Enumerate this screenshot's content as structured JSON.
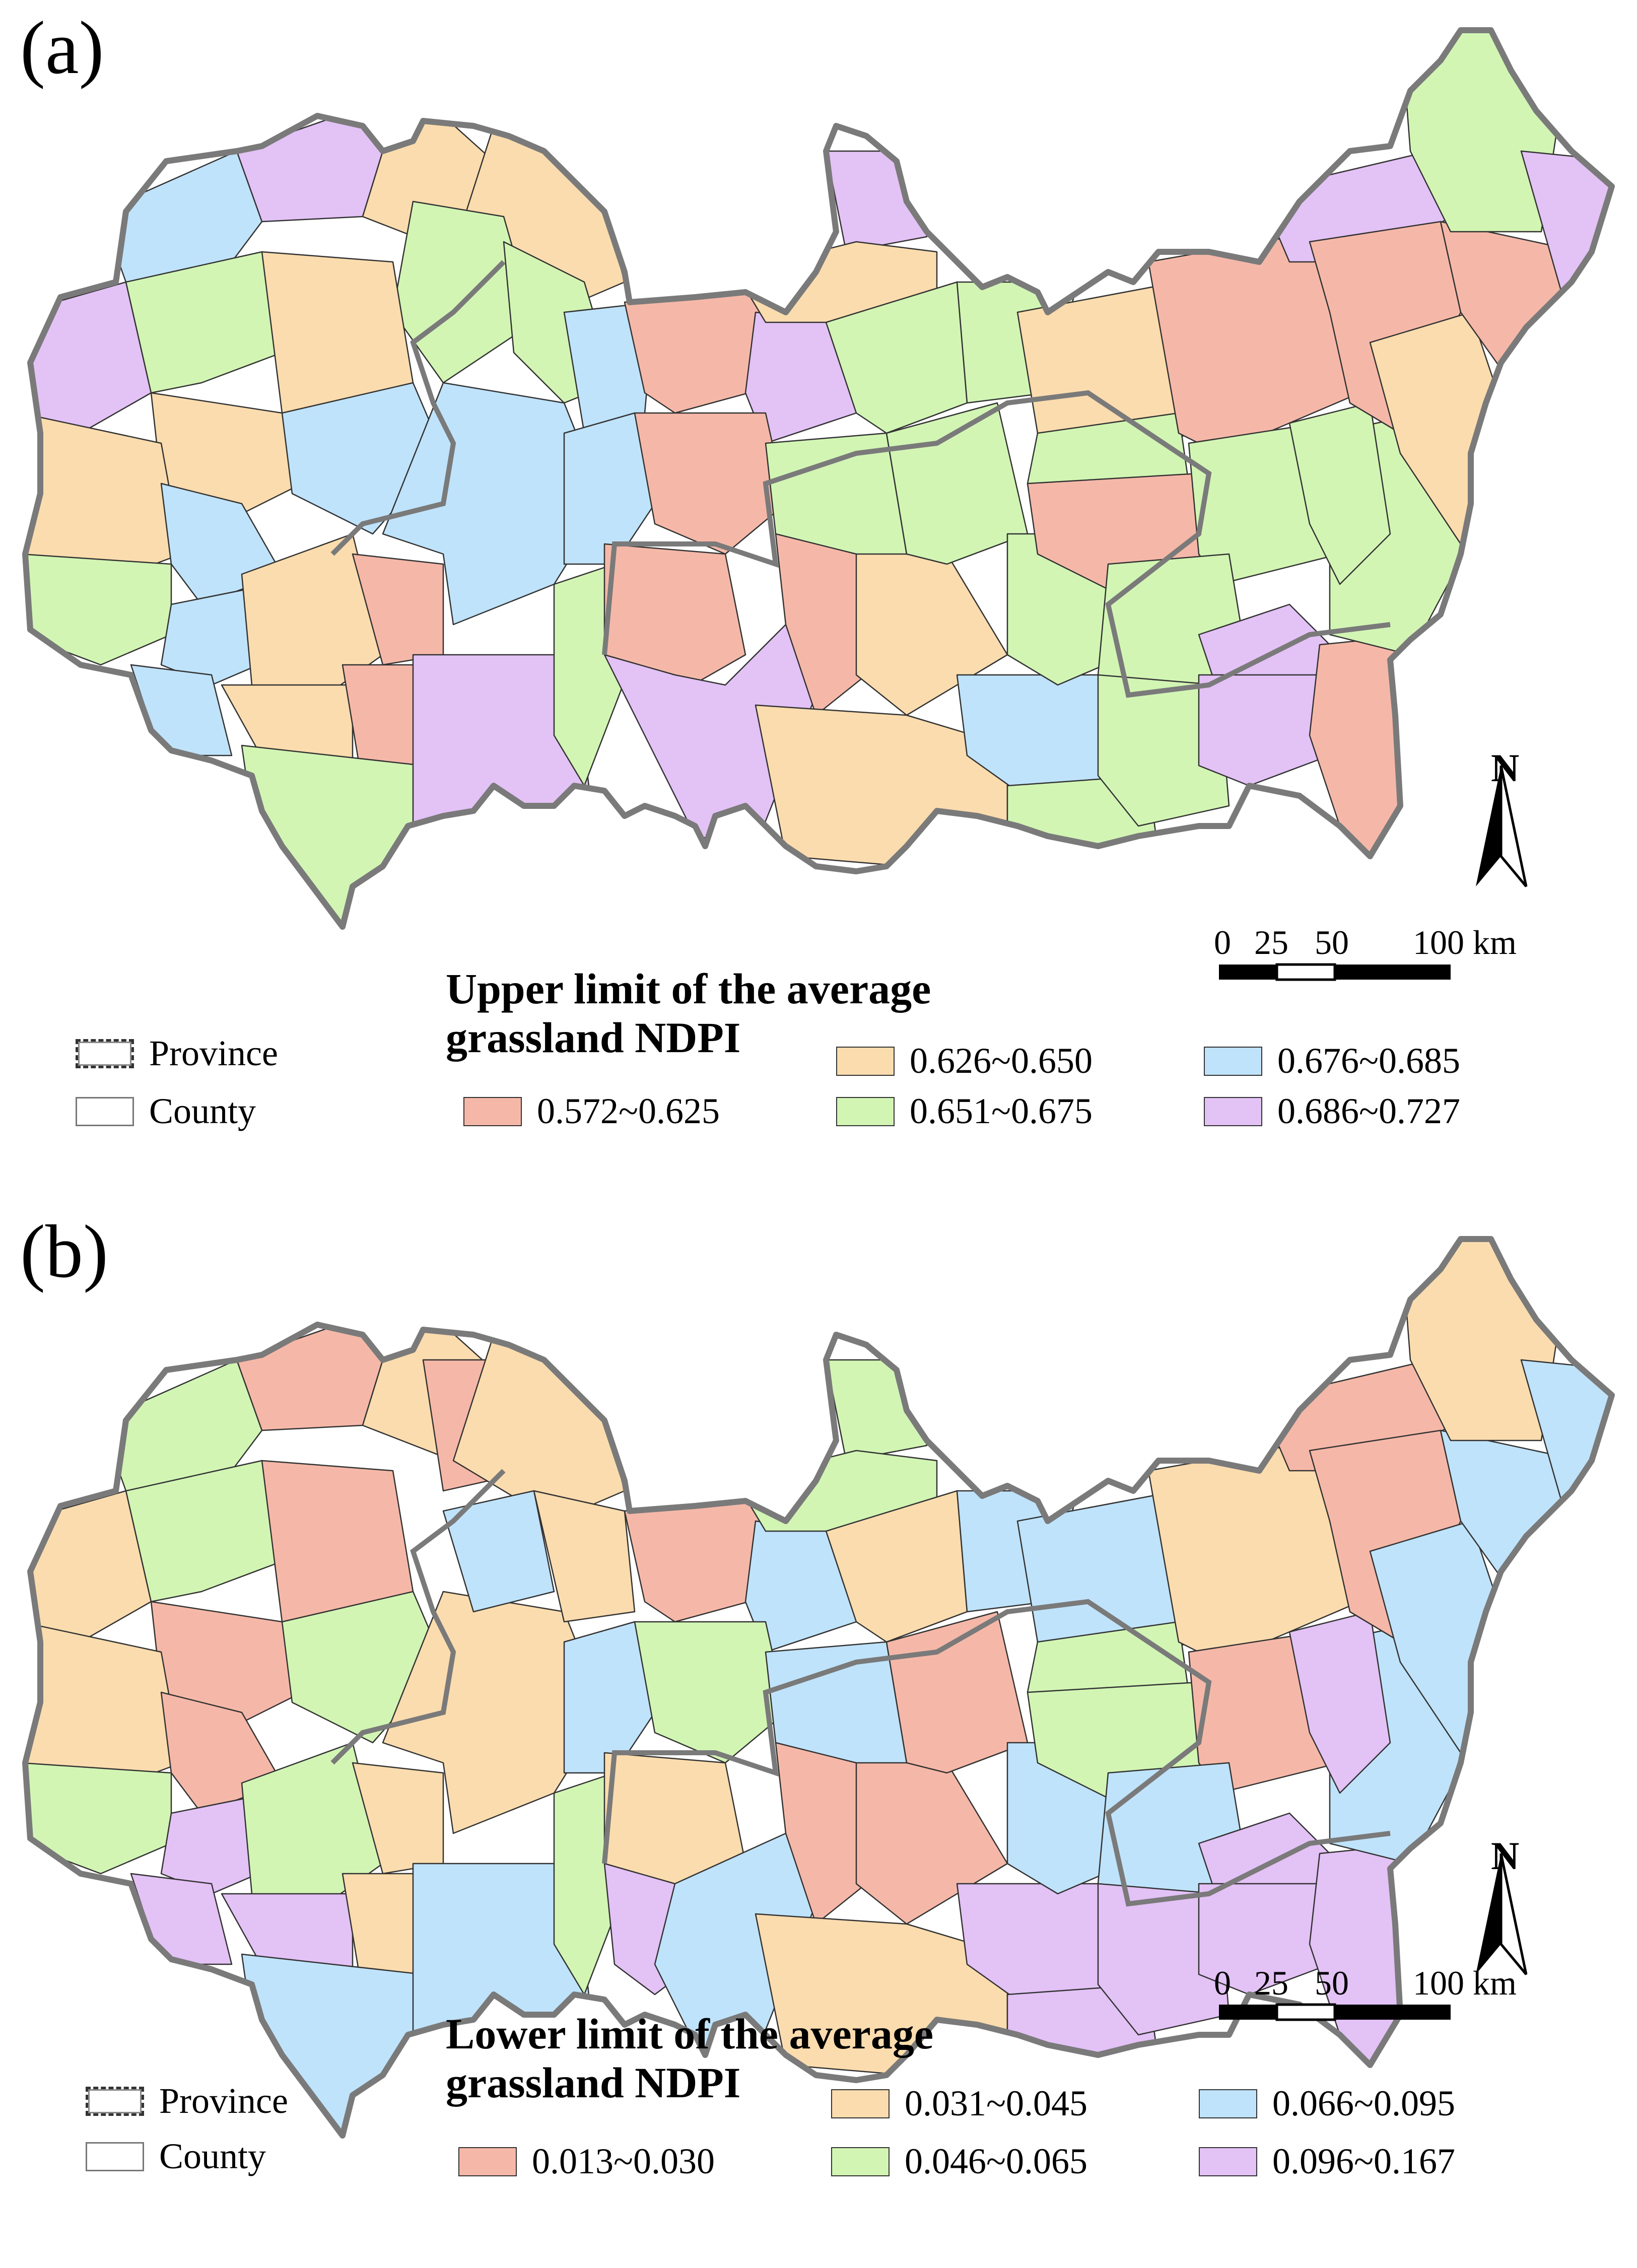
{
  "colors": {
    "c1": "#f5b8a8",
    "c2": "#fbdcae",
    "c3": "#d2f5b4",
    "c4": "#bfe3fb",
    "c5": "#e3c2f6",
    "province_border": "#7a7a7a",
    "county_border": "#333333"
  },
  "panels": [
    {
      "label": "(a)",
      "legend": {
        "title_line1": "Upper limit of the average",
        "title_line2": "grassland NDPI",
        "province": "Province",
        "county": "County",
        "classes": [
          {
            "label": "0.572~0.625",
            "color": "#f5b8a8"
          },
          {
            "label": "0.626~0.650",
            "color": "#fbdcae"
          },
          {
            "label": "0.651~0.675",
            "color": "#d2f5b4"
          },
          {
            "label": "0.676~0.685",
            "color": "#bfe3fb"
          },
          {
            "label": "0.686~0.727",
            "color": "#e3c2f6"
          }
        ]
      },
      "north": "N",
      "scale": {
        "t0": "0",
        "t1": "25",
        "t2": "50",
        "t3": "100 km"
      }
    },
    {
      "label": "(b)",
      "legend": {
        "title_line1": "Lower limit of the average",
        "title_line2": "grassland NDPI",
        "province": "Province",
        "county": "County",
        "classes": [
          {
            "label": "0.013~0.030",
            "color": "#f5b8a8"
          },
          {
            "label": "0.031~0.045",
            "color": "#fbdcae"
          },
          {
            "label": "0.046~0.065",
            "color": "#d2f5b4"
          },
          {
            "label": "0.066~0.095",
            "color": "#bfe3fb"
          },
          {
            "label": "0.096~0.167",
            "color": "#e3c2f6"
          }
        ]
      },
      "north": "N",
      "scale": {
        "t0": "0",
        "t1": "25",
        "t2": "50",
        "t3": "100 km"
      }
    }
  ]
}
